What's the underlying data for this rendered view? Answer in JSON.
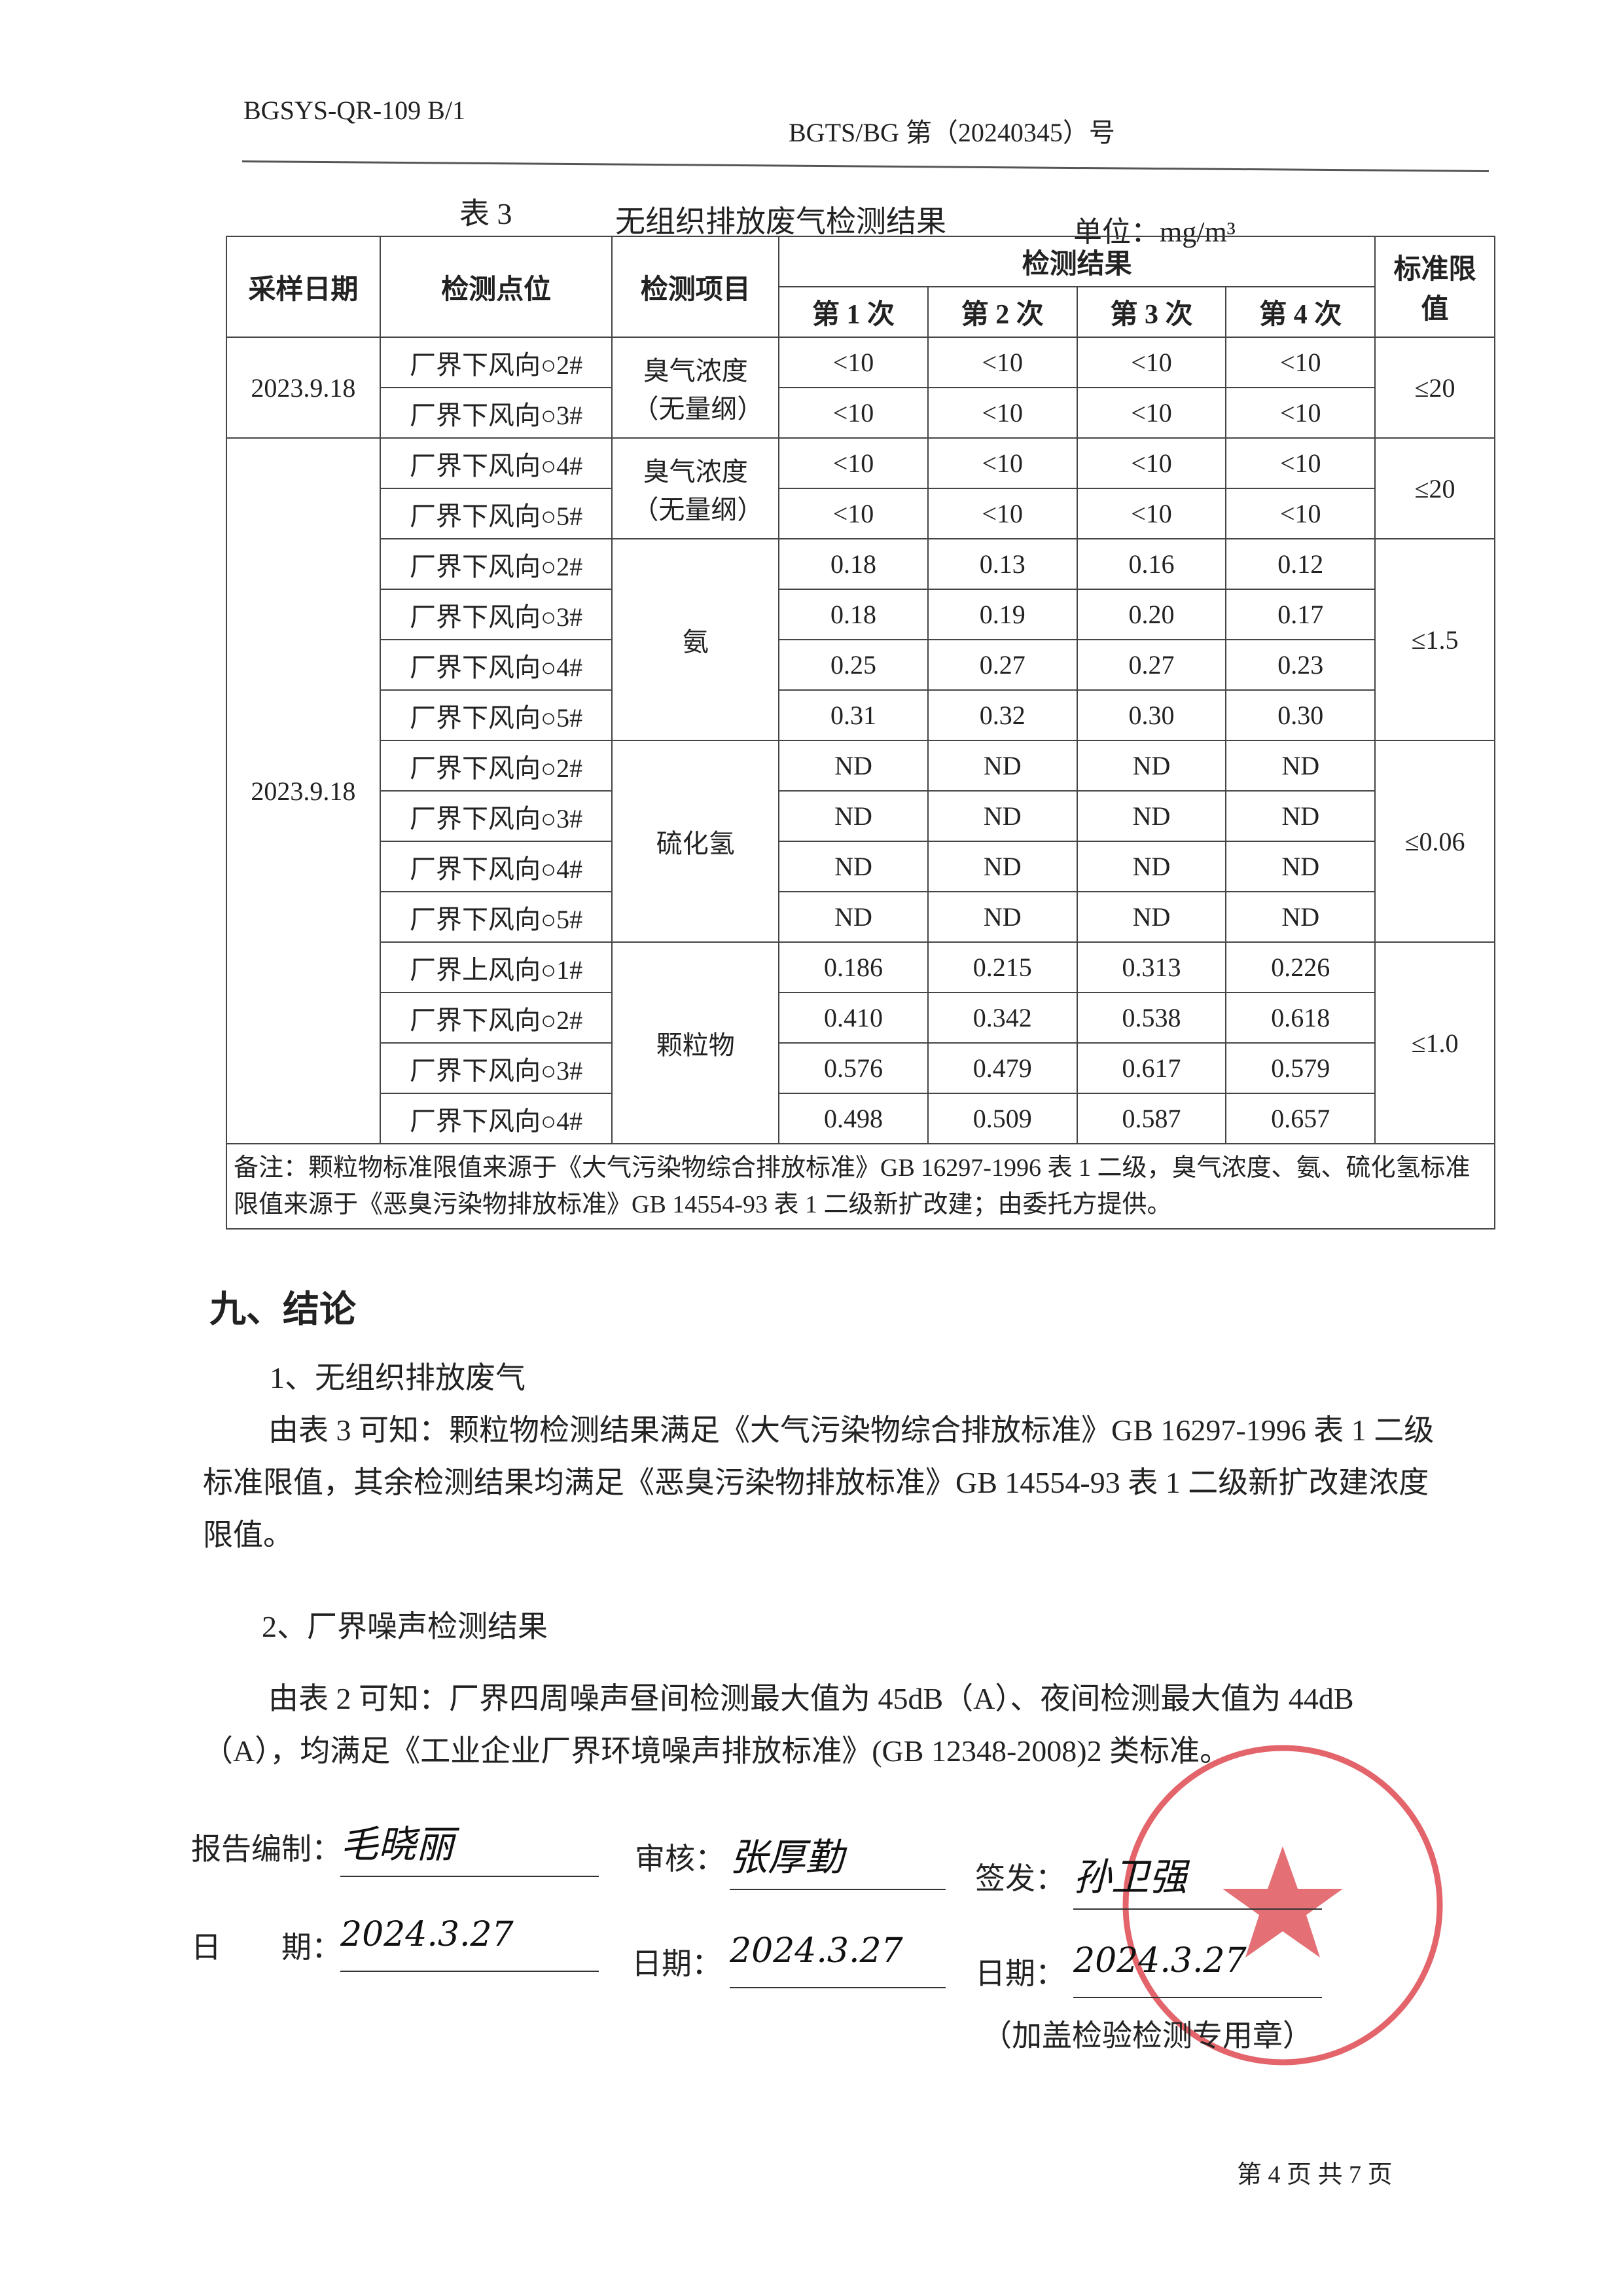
{
  "header": {
    "form_code": "BGSYS-QR-109 B/1",
    "report_no": "BGTS/BG 第（20240345）号"
  },
  "table": {
    "caption_no": "表 3",
    "caption_title": "无组织排放废气检测结果",
    "unit": "单位：mg/m³",
    "headers": {
      "date": "采样日期",
      "point": "检测点位",
      "item": "检测项目",
      "results": "检测结果",
      "runs": [
        "第 1 次",
        "第 2 次",
        "第 3 次",
        "第 4 次"
      ],
      "limit": "标准限值"
    },
    "rows": [
      {
        "date": "2023.9.18",
        "point": "厂界下风向○2#",
        "item": "臭气浓度（无量纲）",
        "values": [
          "<10",
          "<10",
          "<10",
          "<10"
        ],
        "limit": "≤20"
      },
      {
        "point": "厂界下风向○3#",
        "values": [
          "<10",
          "<10",
          "<10",
          "<10"
        ]
      },
      {
        "date": "2023.9.18",
        "point": "厂界下风向○4#",
        "item": "臭气浓度（无量纲）",
        "values": [
          "<10",
          "<10",
          "<10",
          "<10"
        ],
        "limit": "≤20"
      },
      {
        "point": "厂界下风向○5#",
        "values": [
          "<10",
          "<10",
          "<10",
          "<10"
        ]
      },
      {
        "point": "厂界下风向○2#",
        "item": "氨",
        "values": [
          "0.18",
          "0.13",
          "0.16",
          "0.12"
        ],
        "limit": "≤1.5"
      },
      {
        "point": "厂界下风向○3#",
        "values": [
          "0.18",
          "0.19",
          "0.20",
          "0.17"
        ]
      },
      {
        "point": "厂界下风向○4#",
        "values": [
          "0.25",
          "0.27",
          "0.27",
          "0.23"
        ]
      },
      {
        "point": "厂界下风向○5#",
        "values": [
          "0.31",
          "0.32",
          "0.30",
          "0.30"
        ]
      },
      {
        "point": "厂界下风向○2#",
        "item": "硫化氢",
        "values": [
          "ND",
          "ND",
          "ND",
          "ND"
        ],
        "limit": "≤0.06"
      },
      {
        "point": "厂界下风向○3#",
        "values": [
          "ND",
          "ND",
          "ND",
          "ND"
        ]
      },
      {
        "point": "厂界下风向○4#",
        "values": [
          "ND",
          "ND",
          "ND",
          "ND"
        ]
      },
      {
        "point": "厂界下风向○5#",
        "values": [
          "ND",
          "ND",
          "ND",
          "ND"
        ]
      },
      {
        "point": "厂界上风向○1#",
        "item": "颗粒物",
        "values": [
          "0.186",
          "0.215",
          "0.313",
          "0.226"
        ],
        "limit": "≤1.0"
      },
      {
        "point": "厂界下风向○2#",
        "values": [
          "0.410",
          "0.342",
          "0.538",
          "0.618"
        ]
      },
      {
        "point": "厂界下风向○3#",
        "values": [
          "0.576",
          "0.479",
          "0.617",
          "0.579"
        ]
      },
      {
        "point": "厂界下风向○4#",
        "values": [
          "0.498",
          "0.509",
          "0.587",
          "0.657"
        ]
      }
    ],
    "note": "备注：颗粒物标准限值来源于《大气污染物综合排放标准》GB 16297-1996 表 1 二级，臭气浓度、氨、硫化氢标准限值来源于《恶臭污染物排放标准》GB 14554-93 表 1 二级新扩改建；由委托方提供。"
  },
  "conclusion": {
    "heading": "九、结论",
    "sub1": "1、无组织排放废气",
    "para1": "由表 3 可知：颗粒物检测结果满足《大气污染物综合排放标准》GB 16297-1996 表 1 二级标准限值，其余检测结果均满足《恶臭污染物排放标准》GB 14554-93 表 1 二级新扩改建浓度限值。",
    "sub2": "2、厂界噪声检测结果",
    "para2": "由表 2 可知：厂界四周噪声昼间检测最大值为 45dB（A）、夜间检测最大值为 44dB（A），均满足《工业企业厂界环境噪声排放标准》(GB 12348-2008)2 类标准。"
  },
  "signatures": {
    "compiler_label": "报告编制：",
    "compiler_sig": "毛晓丽",
    "reviewer_label": "审核：",
    "reviewer_sig": "张厚勤",
    "issuer_label": "签发：",
    "issuer_sig": "孙卫强",
    "date_label1": "日　　期：",
    "date1": "2024.3.27",
    "date_label2": "日期：",
    "date2": "2024.3.27",
    "date_label3": "日期：",
    "date3": "2024.3.27",
    "stamp_note": "（加盖检验检测专用章）",
    "stamp_color": "#d9323a"
  },
  "footer": {
    "page": "第 4 页 共 7 页"
  }
}
